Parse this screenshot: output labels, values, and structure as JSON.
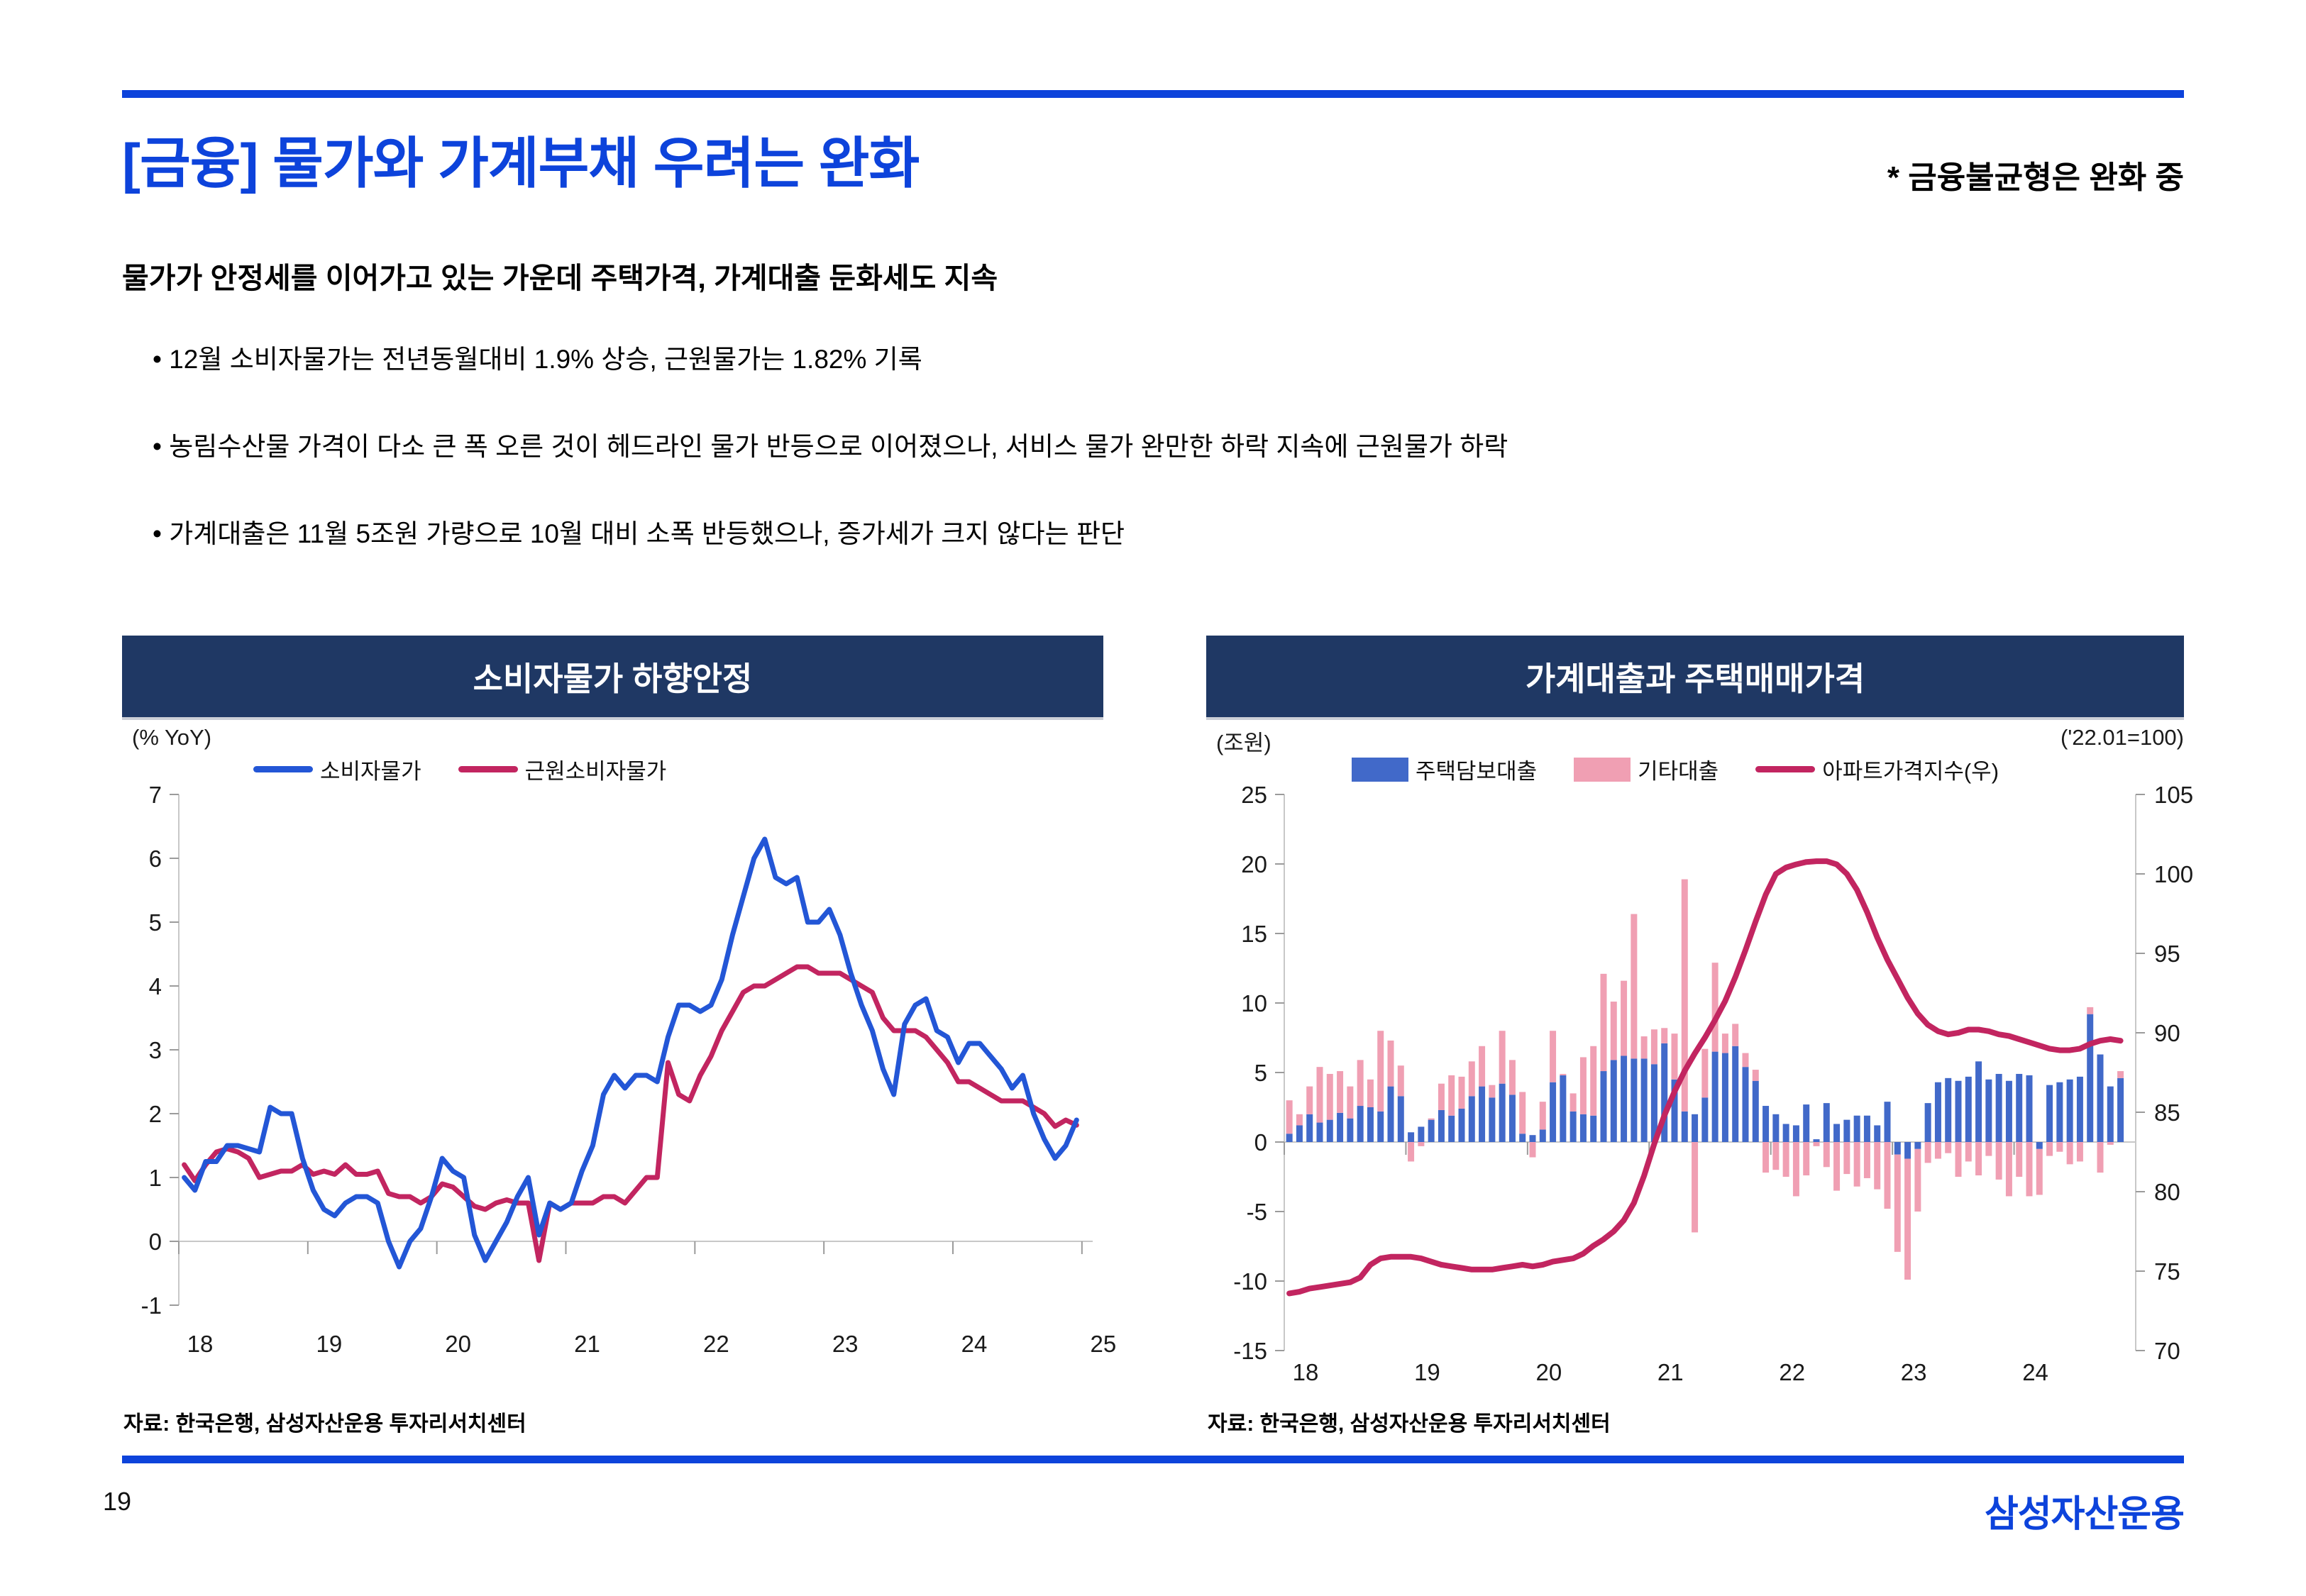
{
  "page": {
    "number": "19",
    "logo_text": "삼성자산운용"
  },
  "header": {
    "title": "[금융] 물가와 가계부채 우려는 완화",
    "note": "* 금융불균형은 완화 중"
  },
  "summary": {
    "heading": "물가가 안정세를 이어가고 있는 가운데 주택가격, 가계대출 둔화세도 지속",
    "bullets": [
      "• 12월 소비자물가는 전년동월대비 1.9% 상승, 근원물가는 1.82% 기록",
      "• 농림수산물 가격이 다소 큰 폭 오른 것이 헤드라인 물가 반등으로 이어졌으나, 서비스 물가 완만한 하락 지속에 근원물가 하락",
      "• 가계대출은 11월 5조원 가량으로 10월 대비 소폭 반등했으나, 증가세가 크지 않다는 판단"
    ]
  },
  "colors": {
    "accent_blue": "#0D43DB",
    "navy_header": "#1F3864",
    "cpi_line": "#2356D6",
    "core_line": "#C22560",
    "bar_mortgage": "#4169C9",
    "bar_other": "#F09FB3",
    "apt_line": "#C22560",
    "axis_gray": "#C8C8C8",
    "tick_gray": "#9B9B9B"
  },
  "chart_data": [
    {
      "type": "line",
      "title": "소비자물가 하향안정",
      "unit_label": "(% YoY)",
      "source": "자료: 한국은행, 삼성자산운용 투자리서치센터",
      "x_ticks": [
        "18",
        "19",
        "20",
        "21",
        "22",
        "23",
        "24",
        "25"
      ],
      "y_ticks": [
        7,
        6,
        5,
        4,
        3,
        2,
        1,
        0,
        -1
      ],
      "ylim": [
        -1,
        7
      ],
      "x_start": "2018-01",
      "x_end": "2024-12",
      "grid": "zero-line-only",
      "legend_position": "top-left",
      "series": [
        {
          "name": "소비자물가",
          "color": "#2356D6",
          "values": [
            1.0,
            0.8,
            1.25,
            1.25,
            1.5,
            1.5,
            1.45,
            1.4,
            2.1,
            2.0,
            2.0,
            1.3,
            0.8,
            0.5,
            0.4,
            0.6,
            0.7,
            0.7,
            0.6,
            0.0,
            -0.4,
            0.0,
            0.2,
            0.7,
            1.3,
            1.1,
            1.0,
            0.1,
            -0.3,
            0.0,
            0.3,
            0.7,
            1.0,
            0.1,
            0.6,
            0.5,
            0.6,
            1.1,
            1.5,
            2.3,
            2.6,
            2.4,
            2.6,
            2.6,
            2.5,
            3.2,
            3.7,
            3.7,
            3.6,
            3.7,
            4.1,
            4.8,
            5.4,
            6.0,
            6.3,
            5.7,
            5.6,
            5.7,
            5.0,
            5.0,
            5.2,
            4.8,
            4.2,
            3.7,
            3.3,
            2.7,
            2.3,
            3.4,
            3.7,
            3.8,
            3.3,
            3.2,
            2.8,
            3.1,
            3.1,
            2.9,
            2.7,
            2.4,
            2.6,
            2.0,
            1.6,
            1.3,
            1.5,
            1.9
          ]
        },
        {
          "name": "근원소비자물가",
          "color": "#C22560",
          "values": [
            1.2,
            0.95,
            1.2,
            1.4,
            1.45,
            1.4,
            1.3,
            1.0,
            1.05,
            1.1,
            1.1,
            1.2,
            1.05,
            1.1,
            1.05,
            1.2,
            1.05,
            1.05,
            1.1,
            0.75,
            0.7,
            0.7,
            0.6,
            0.7,
            0.9,
            0.85,
            0.7,
            0.55,
            0.5,
            0.6,
            0.65,
            0.6,
            0.6,
            -0.3,
            0.6,
            0.5,
            0.6,
            0.6,
            0.6,
            0.7,
            0.7,
            0.6,
            0.8,
            1.0,
            1.0,
            2.8,
            2.3,
            2.2,
            2.6,
            2.9,
            3.3,
            3.6,
            3.9,
            4.0,
            4.0,
            4.1,
            4.2,
            4.3,
            4.3,
            4.2,
            4.2,
            4.2,
            4.1,
            4.0,
            3.9,
            3.5,
            3.3,
            3.3,
            3.3,
            3.2,
            3.0,
            2.8,
            2.5,
            2.5,
            2.4,
            2.3,
            2.2,
            2.2,
            2.2,
            2.1,
            2.0,
            1.8,
            1.9,
            1.82
          ]
        }
      ]
    },
    {
      "type": "bar",
      "subtype": "stacked-bar-with-line",
      "title": "가계대출과 주택매매가격",
      "unit_left": "(조원)",
      "unit_right": "('22.01=100)",
      "source": "자료: 한국은행, 삼성자산운용 투자리서치센터",
      "x_ticks": [
        "18",
        "19",
        "20",
        "21",
        "22",
        "23",
        "24"
      ],
      "y_left_ticks": [
        25,
        20,
        15,
        10,
        5,
        0,
        -5,
        -10,
        -15
      ],
      "y_right_ticks": [
        105,
        100,
        95,
        90,
        85,
        80,
        75,
        70
      ],
      "ylim_left": [
        -15,
        25
      ],
      "ylim_right": [
        70,
        105
      ],
      "x_start": "2018-01",
      "x_end": "2024-11",
      "legend_position": "top-center",
      "bar_series": [
        {
          "name": "주택담보대출",
          "color": "#4169C9",
          "values": [
            0.6,
            1.2,
            2.0,
            1.4,
            1.6,
            2.1,
            1.7,
            2.6,
            2.5,
            2.2,
            4.0,
            3.3,
            0.7,
            1.1,
            1.6,
            2.3,
            1.9,
            2.4,
            3.3,
            4.0,
            3.2,
            4.2,
            3.4,
            0.6,
            0.5,
            0.9,
            4.3,
            4.8,
            2.2,
            2.0,
            1.9,
            5.1,
            5.9,
            6.2,
            6.0,
            6.0,
            5.6,
            7.1,
            4.5,
            2.2,
            2.0,
            3.2,
            6.5,
            6.4,
            6.9,
            5.4,
            4.4,
            2.6,
            2.0,
            1.3,
            1.2,
            2.7,
            0.2,
            2.8,
            1.3,
            1.6,
            1.9,
            1.9,
            1.2,
            2.9,
            -0.9,
            -1.2,
            -0.5,
            2.8,
            4.3,
            4.6,
            4.4,
            4.7,
            5.8,
            4.5,
            4.9,
            4.4,
            4.9,
            4.8,
            -0.5,
            4.1,
            4.3,
            4.5,
            4.7,
            9.2,
            6.3,
            4.0,
            4.6
          ]
        },
        {
          "name": "기타대출",
          "color": "#F09FB3",
          "values": [
            2.4,
            0.8,
            2.0,
            4.0,
            3.3,
            3.0,
            2.3,
            3.3,
            2.0,
            5.8,
            3.3,
            2.2,
            -1.4,
            -0.3,
            0.1,
            1.9,
            2.9,
            2.3,
            2.5,
            2.9,
            0.9,
            3.8,
            2.5,
            3.0,
            -1.1,
            2.0,
            3.7,
            0.1,
            1.3,
            4.1,
            5.0,
            7.0,
            4.2,
            5.4,
            10.4,
            1.6,
            2.5,
            1.1,
            3.3,
            16.7,
            -6.5,
            3.5,
            6.4,
            1.4,
            1.6,
            1.0,
            0.8,
            -2.2,
            -2.0,
            -2.5,
            -3.9,
            -2.4,
            -0.3,
            -1.8,
            -3.5,
            -2.3,
            -3.2,
            -2.6,
            -3.4,
            -4.8,
            -7.0,
            -8.7,
            -4.5,
            -1.5,
            -1.2,
            -0.8,
            -2.5,
            -1.4,
            -2.4,
            -1.0,
            -2.7,
            -3.9,
            -2.5,
            -3.9,
            -3.3,
            -1.0,
            -0.7,
            -1.6,
            -1.4,
            0.5,
            -2.2,
            -0.2,
            0.5
          ]
        }
      ],
      "line_series": {
        "name": "아파트가격지수(우)",
        "color": "#C22560",
        "axis": "right",
        "values": [
          73.6,
          73.7,
          73.9,
          74.0,
          74.1,
          74.2,
          74.3,
          74.6,
          75.4,
          75.8,
          75.9,
          75.9,
          75.9,
          75.8,
          75.6,
          75.4,
          75.3,
          75.2,
          75.1,
          75.1,
          75.1,
          75.2,
          75.3,
          75.4,
          75.3,
          75.4,
          75.6,
          75.7,
          75.8,
          76.1,
          76.6,
          77.0,
          77.5,
          78.2,
          79.3,
          81.0,
          83.0,
          84.8,
          86.3,
          87.6,
          88.7,
          89.7,
          90.8,
          92.0,
          93.5,
          95.2,
          97.0,
          98.7,
          100.0,
          100.4,
          100.6,
          100.75,
          100.8,
          100.8,
          100.6,
          100.0,
          99.0,
          97.6,
          96.0,
          94.6,
          93.4,
          92.2,
          91.2,
          90.5,
          90.1,
          89.9,
          90.0,
          90.2,
          90.2,
          90.1,
          89.9,
          89.8,
          89.6,
          89.4,
          89.2,
          89.0,
          88.9,
          88.9,
          89.0,
          89.3,
          89.5,
          89.6,
          89.5
        ]
      }
    }
  ]
}
